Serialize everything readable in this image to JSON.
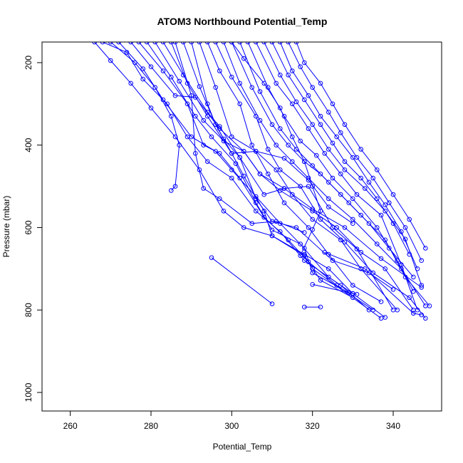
{
  "chart_data": {
    "type": "line",
    "title": "ATOM3 Northbound Potential_Temp",
    "xlabel": "Potential_Temp",
    "ylabel": "Pressure (mbar)",
    "xlim": [
      253,
      352
    ],
    "ylim": [
      1045,
      150
    ],
    "y_reversed": true,
    "x_ticks": [
      260,
      280,
      300,
      320,
      340
    ],
    "y_ticks": [
      200,
      400,
      600,
      800,
      1000
    ],
    "x_tick_labels": [
      "260",
      "280",
      "300",
      "320",
      "340"
    ],
    "y_tick_labels": [
      "200",
      "400",
      "600",
      "800",
      "1000"
    ],
    "grid": false,
    "legend": "none",
    "marker": "open-circle",
    "color": "#0000ff",
    "series": [
      {
        "points": [
          [
            266,
            150
          ],
          [
            270,
            195
          ],
          [
            275,
            250
          ],
          [
            280,
            310
          ],
          [
            286,
            380
          ],
          [
            292,
            460
          ],
          [
            298,
            560
          ],
          [
            303,
            600
          ],
          [
            310,
            620
          ],
          [
            318,
            665
          ],
          [
            324,
            700
          ],
          [
            330,
            760
          ],
          [
            338,
            818
          ]
        ]
      },
      {
        "points": [
          [
            268,
            150
          ],
          [
            274,
            175
          ],
          [
            278,
            240
          ],
          [
            284,
            300
          ],
          [
            289,
            380
          ],
          [
            294,
            440
          ],
          [
            300,
            480
          ],
          [
            306,
            560
          ],
          [
            312,
            610
          ],
          [
            318,
            680
          ],
          [
            327,
            740
          ],
          [
            334,
            800
          ]
        ]
      },
      {
        "points": [
          [
            270,
            150
          ],
          [
            276,
            200
          ],
          [
            281,
            260
          ],
          [
            285,
            330
          ],
          [
            287,
            400
          ],
          [
            286,
            500
          ],
          [
            285,
            510
          ]
        ]
      },
      {
        "points": [
          [
            272,
            150
          ],
          [
            278,
            215
          ],
          [
            283,
            290
          ],
          [
            290,
            380
          ],
          [
            296,
            415
          ],
          [
            300,
            460
          ],
          [
            306,
            525
          ],
          [
            312,
            590
          ],
          [
            318,
            650
          ],
          [
            320,
            710
          ],
          [
            329,
            758
          ]
        ]
      },
      {
        "points": [
          [
            275,
            150
          ],
          [
            280,
            210
          ],
          [
            286,
            280
          ],
          [
            291,
            284
          ],
          [
            297,
            360
          ],
          [
            303,
            415
          ],
          [
            307,
            470
          ],
          [
            312,
            510
          ],
          [
            320,
            560
          ],
          [
            326,
            600
          ],
          [
            332,
            660
          ],
          [
            338,
            700
          ],
          [
            345,
            800
          ]
        ]
      },
      {
        "points": [
          [
            277,
            150
          ],
          [
            283,
            220
          ],
          [
            289,
            300
          ],
          [
            293,
            400
          ],
          [
            297,
            420
          ],
          [
            302,
            480
          ],
          [
            308,
            575
          ],
          [
            314,
            630
          ],
          [
            319,
            683
          ],
          [
            326,
            740
          ],
          [
            335,
            800
          ]
        ]
      },
      {
        "points": [
          [
            279,
            150
          ],
          [
            285,
            235
          ],
          [
            291,
            330
          ],
          [
            295,
            380
          ],
          [
            301,
            445
          ],
          [
            306,
            540
          ],
          [
            310,
            606
          ],
          [
            317,
            640
          ],
          [
            324,
            720
          ],
          [
            330,
            760
          ]
        ]
      },
      {
        "points": [
          [
            281,
            150
          ],
          [
            287,
            245
          ],
          [
            293,
            340
          ],
          [
            298,
            390
          ],
          [
            303,
            415
          ],
          [
            307,
            470
          ],
          [
            313,
            505
          ],
          [
            320,
            555
          ],
          [
            328,
            600
          ],
          [
            337,
            675
          ],
          [
            347,
            745
          ]
        ]
      },
      {
        "points": [
          [
            283,
            150
          ],
          [
            288,
            230
          ],
          [
            294,
            320
          ],
          [
            297,
            355
          ],
          [
            302,
            430
          ],
          [
            308,
            520
          ],
          [
            313,
            505
          ],
          [
            319,
            500
          ],
          [
            325,
            600
          ],
          [
            331,
            652
          ],
          [
            340,
            800
          ]
        ]
      },
      {
        "points": [
          [
            286,
            150
          ],
          [
            290,
            280
          ],
          [
            291,
            420
          ],
          [
            293,
            505
          ],
          [
            297,
            530
          ],
          [
            305,
            590
          ],
          [
            311,
            585
          ],
          [
            318,
            612
          ]
        ]
      },
      {
        "points": [
          [
            288,
            150
          ],
          [
            292,
            258
          ],
          [
            296,
            350
          ],
          [
            298,
            385
          ],
          [
            302,
            430
          ],
          [
            306,
            530
          ],
          [
            310,
            585
          ],
          [
            316,
            600
          ],
          [
            325,
            680
          ],
          [
            334,
            710
          ],
          [
            340,
            750
          ]
        ]
      },
      {
        "points": [
          [
            290,
            150
          ],
          [
            294,
            300
          ],
          [
            296,
            350
          ],
          [
            300,
            420
          ],
          [
            303,
            475
          ],
          [
            308,
            560
          ],
          [
            310,
            620
          ],
          [
            318,
            668
          ],
          [
            322,
            728
          ],
          [
            330,
            770
          ]
        ]
      },
      {
        "points": [
          [
            292,
            150
          ],
          [
            296,
            260
          ],
          [
            300,
            380
          ],
          [
            306,
            415
          ],
          [
            311,
            460
          ],
          [
            315,
            520
          ],
          [
            320,
            580
          ],
          [
            327,
            630
          ],
          [
            332,
            700
          ],
          [
            341,
            800
          ]
        ]
      },
      {
        "points": [
          [
            294,
            150
          ],
          [
            297,
            220
          ],
          [
            302,
            300
          ],
          [
            305,
            400
          ],
          [
            309,
            470
          ],
          [
            313,
            540
          ],
          [
            319,
            600
          ],
          [
            324,
            665
          ],
          [
            330,
            740
          ],
          [
            337,
            780
          ]
        ]
      },
      {
        "points": [
          [
            296,
            150
          ],
          [
            300,
            235
          ],
          [
            306,
            330
          ],
          [
            309,
            410
          ],
          [
            312,
            460
          ],
          [
            317,
            500
          ],
          [
            322,
            580
          ],
          [
            328,
            635
          ],
          [
            335,
            710
          ],
          [
            344,
            770
          ],
          [
            348,
            820
          ]
        ]
      },
      {
        "points": [
          [
            298,
            150
          ],
          [
            302,
            250
          ],
          [
            307,
            340
          ],
          [
            311,
            400
          ],
          [
            315,
            440
          ],
          [
            319,
            480
          ],
          [
            324,
            530
          ],
          [
            330,
            580
          ],
          [
            336,
            640
          ],
          [
            342,
            700
          ],
          [
            348,
            790
          ]
        ]
      },
      {
        "points": [
          [
            300,
            150
          ],
          [
            305,
            260
          ],
          [
            310,
            350
          ],
          [
            314,
            400
          ],
          [
            318,
            440
          ],
          [
            322,
            470
          ],
          [
            327,
            520
          ],
          [
            332,
            570
          ],
          [
            338,
            630
          ],
          [
            343,
            720
          ],
          [
            349,
            790
          ]
        ]
      },
      {
        "points": [
          [
            302,
            150
          ],
          [
            307,
            270
          ],
          [
            312,
            360
          ],
          [
            316,
            410
          ],
          [
            320,
            450
          ],
          [
            324,
            490
          ],
          [
            329,
            540
          ],
          [
            334,
            590
          ],
          [
            339,
            650
          ],
          [
            345,
            720
          ]
        ]
      },
      {
        "points": [
          [
            304,
            150
          ],
          [
            309,
            260
          ],
          [
            313,
            330
          ],
          [
            317,
            390
          ],
          [
            321,
            425
          ],
          [
            325,
            480
          ],
          [
            330,
            530
          ],
          [
            336,
            600
          ],
          [
            341,
            680
          ],
          [
            345,
            755
          ]
        ]
      },
      {
        "points": [
          [
            306,
            150
          ],
          [
            311,
            250
          ],
          [
            315,
            300
          ],
          [
            319,
            360
          ],
          [
            323,
            420
          ],
          [
            327,
            470
          ],
          [
            331,
            520
          ],
          [
            337,
            570
          ],
          [
            342,
            690
          ],
          [
            346,
            800
          ]
        ]
      },
      {
        "points": [
          [
            308,
            150
          ],
          [
            312,
            230
          ],
          [
            316,
            295
          ],
          [
            320,
            350
          ],
          [
            324,
            410
          ],
          [
            328,
            460
          ],
          [
            333,
            505
          ],
          [
            338,
            560
          ],
          [
            343,
            628
          ],
          [
            347,
            740
          ]
        ]
      },
      {
        "points": [
          [
            310,
            150
          ],
          [
            314,
            230
          ],
          [
            318,
            290
          ],
          [
            322,
            350
          ],
          [
            325,
            395
          ],
          [
            328,
            440
          ],
          [
            332,
            480
          ],
          [
            336,
            530
          ],
          [
            340,
            590
          ],
          [
            344,
            665
          ]
        ]
      },
      {
        "points": [
          [
            312,
            150
          ],
          [
            315,
            220
          ],
          [
            319,
            280
          ],
          [
            322,
            330
          ],
          [
            326,
            380
          ],
          [
            330,
            430
          ],
          [
            334,
            490
          ],
          [
            338,
            545
          ],
          [
            342,
            610
          ],
          [
            346,
            700
          ]
        ]
      },
      {
        "points": [
          [
            314,
            150
          ],
          [
            317,
            210
          ],
          [
            320,
            260
          ],
          [
            324,
            320
          ],
          [
            327,
            370
          ],
          [
            331,
            430
          ],
          [
            335,
            480
          ],
          [
            339,
            540
          ],
          [
            343,
            600
          ],
          [
            347,
            680
          ]
        ]
      },
      {
        "points": [
          [
            316,
            150
          ],
          [
            318,
            200
          ],
          [
            322,
            250
          ],
          [
            325,
            300
          ],
          [
            328,
            350
          ],
          [
            332,
            410
          ],
          [
            336,
            460
          ],
          [
            340,
            520
          ],
          [
            344,
            580
          ],
          [
            348,
            650
          ]
        ]
      },
      {
        "points": [
          [
            300,
            150
          ],
          [
            303,
            190
          ],
          [
            308,
            250
          ],
          [
            312,
            310
          ],
          [
            315,
            380
          ],
          [
            318,
            440
          ],
          [
            320,
            500
          ],
          [
            322,
            560
          ],
          [
            320,
            605
          ],
          [
            317,
            668
          ]
        ]
      },
      {
        "points": [
          [
            285,
            150
          ],
          [
            289,
            250
          ],
          [
            294,
            330
          ],
          [
            300,
            420
          ],
          [
            306,
            415
          ],
          [
            313,
            432
          ],
          [
            319,
            485
          ],
          [
            324,
            550
          ],
          [
            330,
            590
          ]
        ]
      },
      {
        "points": [
          [
            295,
            673
          ],
          [
            310,
            785
          ]
        ]
      },
      {
        "points": [
          [
            318,
            793
          ],
          [
            322,
            793
          ]
        ]
      },
      {
        "points": [
          [
            320,
            738
          ],
          [
            331,
            762
          ]
        ]
      },
      {
        "points": [
          [
            323,
            660
          ],
          [
            333,
            700
          ],
          [
            345,
            808
          ],
          [
            347,
            812
          ]
        ]
      },
      {
        "points": [
          [
            320,
            700
          ],
          [
            337,
            820
          ]
        ]
      }
    ]
  }
}
